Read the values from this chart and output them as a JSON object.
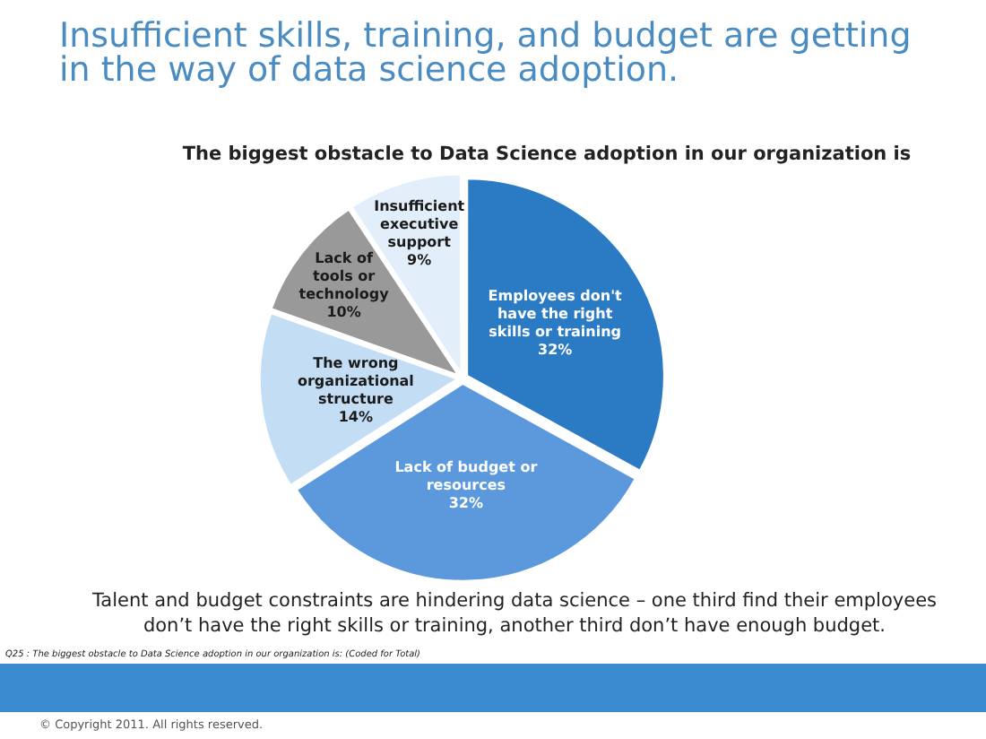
{
  "chart_data": {
    "type": "pie",
    "title": "Insufficient skills, training, and budget are getting in the way of data science adoption.",
    "subtitle": "The biggest obstacle to Data Science adoption in our organization is",
    "categories": [
      "Employees don't have the right skills or training",
      "Lack of budget or resources",
      "The wrong organizational structure",
      "Lack of tools or technology",
      "Insufficient executive support"
    ],
    "values": [
      32,
      32,
      14,
      10,
      9
    ],
    "value_labels": [
      "32%",
      "32%",
      "14%",
      "10%",
      "9%"
    ],
    "colors": [
      "#2b7bc4",
      "#5b98dc",
      "#c3ddf5",
      "#999999",
      "#e2eefa"
    ],
    "legend": false,
    "annotations": [
      "Talent and budget constraints are hindering data science – one third find their employees don’t have the right skills or training, another third don’t have enough budget.",
      "Q25 : The biggest obstacle to Data Science adoption in our organization is: (Coded for Total)",
      "© Copyright 2011. All rights reserved."
    ]
  }
}
